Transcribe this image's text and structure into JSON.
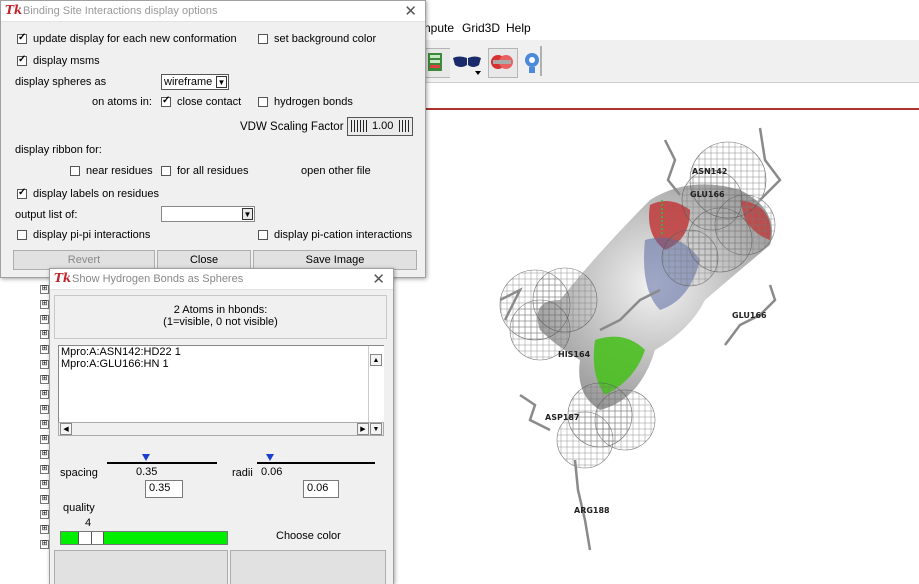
{
  "background": {
    "menu": [
      "npute",
      "Grid3D",
      "Help"
    ],
    "residue_labels": {
      "asn142": "ASN142",
      "glu166_top": "GLU166",
      "glu166": "GLU166",
      "his164": "HIS164",
      "asp187": "ASP187",
      "arg188": "ARG188"
    },
    "tree_box_glyph": "⊞"
  },
  "binding_dialog": {
    "title": "Binding Site Interactions display options",
    "icon": "Tk",
    "close_glyph": "✕",
    "update_display": {
      "label": "update display for each new conformation",
      "checked": true
    },
    "set_bg_color": {
      "label": "set background color",
      "checked": false
    },
    "display_msms": {
      "label": "display msms",
      "checked": true
    },
    "spheres_label": "display spheres as",
    "spheres_value": "wireframe",
    "on_atoms_label": "on atoms in:",
    "close_contact": {
      "label": "close contact",
      "checked": true
    },
    "hydrogen_bonds": {
      "label": "hydrogen bonds",
      "checked": false
    },
    "vdw_label": "VDW Scaling Factor",
    "vdw_value": "1.00",
    "ribbon_label": "display ribbon for:",
    "near_residues": {
      "label": "near residues",
      "checked": false
    },
    "all_residues": {
      "label": "for all residues",
      "checked": false
    },
    "open_other_file": "open other file",
    "display_labels": {
      "label": "display labels on residues",
      "checked": true
    },
    "output_list_label": "output list of:",
    "output_list_value": "",
    "pi_pi": {
      "label": "display pi-pi interactions",
      "checked": false
    },
    "pi_cation": {
      "label": "display pi-cation interactions",
      "checked": false
    },
    "buttons": {
      "revert": "Revert",
      "close": "Close",
      "save_image": "Save Image"
    }
  },
  "hbond_dialog": {
    "title": "Show Hydrogen Bonds as Spheres",
    "icon": "Tk",
    "close_glyph": "✕",
    "header_line1": "2 Atoms in hbonds:",
    "header_line2": "(1=visible, 0 not visible)",
    "atoms": [
      "Mpro:A:ASN142:HD22 1",
      "Mpro:A:GLU166:HN 1"
    ],
    "spacing_label": "spacing",
    "spacing_slider_value": "0.35",
    "spacing_entry": "0.35",
    "radii_label": "radii",
    "radii_slider_value": "0.06",
    "radii_entry": "0.06",
    "quality_label": "quality",
    "quality_value": "4",
    "quality_fraction": 0.12,
    "color_swatch": "#00ee00",
    "choose_color": "Choose color"
  },
  "colors": {
    "title_icon": "#c0262c",
    "separator": "#b03030",
    "slider_thumb": "#1a3fd0"
  }
}
